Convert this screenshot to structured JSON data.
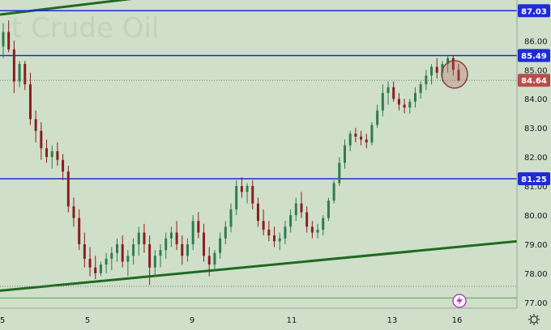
{
  "chart_data": {
    "type": "candlestick",
    "watermark": "t Crude Oil",
    "y_axis": {
      "min": 76.8,
      "max": 87.4,
      "ticks": [
        86.0,
        85.0,
        84.0,
        83.0,
        82.0,
        81.0,
        80.0,
        79.0,
        78.0,
        77.0
      ],
      "tick_labels": [
        "86.00",
        "85.00",
        "84.00",
        "83.00",
        "82.00",
        "81.00",
        "80.00",
        "79.00",
        "78.00",
        "77.00"
      ]
    },
    "x_axis": {
      "tick_labels": [
        "5",
        "5",
        "9",
        "11",
        "13",
        "16"
      ]
    },
    "horizontal_levels": [
      {
        "label": "87.03",
        "value": 87.03,
        "color": "#1e2bd6"
      },
      {
        "label": "85.49",
        "value": 85.49,
        "color": "#1e2bd6"
      },
      {
        "label": "81.25",
        "value": 81.25,
        "color": "#1e2bd6"
      }
    ],
    "last_price": {
      "label": "84.64",
      "value": 84.64,
      "color": "#b84d4d"
    },
    "trendlines": [
      {
        "color": "#1f6b1f",
        "from": {
          "x": 0,
          "y": 86.9
        },
        "to": {
          "x": 270,
          "y": 87.8
        }
      },
      {
        "color": "#1f6b1f",
        "from": {
          "x": 0,
          "y": 77.4
        },
        "to": {
          "x": 638,
          "y": 79.1
        }
      }
    ],
    "dotted_reference": [
      84.64,
      77.55
    ],
    "bottom_level": 77.15,
    "candles": [
      [
        85.8,
        86.6,
        85.4,
        86.3
      ],
      [
        86.3,
        86.7,
        85.6,
        85.7
      ],
      [
        85.7,
        86.0,
        84.2,
        84.6
      ],
      [
        84.6,
        85.3,
        84.4,
        85.2
      ],
      [
        85.2,
        85.3,
        84.3,
        84.5
      ],
      [
        84.5,
        84.9,
        83.1,
        83.3
      ],
      [
        83.3,
        83.6,
        82.5,
        82.9
      ],
      [
        82.9,
        83.2,
        81.9,
        82.3
      ],
      [
        82.3,
        82.6,
        81.8,
        82.0
      ],
      [
        82.0,
        82.4,
        81.6,
        82.2
      ],
      [
        82.2,
        82.5,
        81.7,
        81.9
      ],
      [
        81.9,
        82.1,
        81.2,
        81.5
      ],
      [
        81.5,
        81.7,
        80.1,
        80.3
      ],
      [
        80.3,
        80.6,
        79.6,
        79.9
      ],
      [
        79.9,
        80.2,
        78.8,
        79.0
      ],
      [
        79.0,
        79.4,
        78.2,
        78.5
      ],
      [
        78.5,
        78.9,
        77.9,
        78.2
      ],
      [
        78.2,
        78.6,
        77.8,
        78.0
      ],
      [
        78.0,
        78.4,
        77.9,
        78.3
      ],
      [
        78.3,
        78.7,
        78.0,
        78.5
      ],
      [
        78.5,
        78.9,
        78.1,
        78.7
      ],
      [
        78.7,
        79.2,
        78.4,
        79.0
      ],
      [
        79.0,
        79.3,
        78.2,
        78.4
      ],
      [
        78.4,
        78.8,
        77.9,
        78.6
      ],
      [
        78.6,
        79.2,
        78.3,
        79.0
      ],
      [
        79.0,
        79.6,
        78.6,
        79.4
      ],
      [
        79.4,
        79.7,
        78.7,
        79.0
      ],
      [
        79.0,
        79.3,
        77.6,
        78.2
      ],
      [
        78.2,
        78.8,
        77.9,
        78.6
      ],
      [
        78.6,
        79.0,
        78.2,
        78.8
      ],
      [
        78.8,
        79.4,
        78.5,
        79.2
      ],
      [
        79.2,
        79.6,
        78.9,
        79.4
      ],
      [
        79.4,
        79.8,
        78.8,
        79.0
      ],
      [
        79.0,
        79.3,
        78.3,
        78.6
      ],
      [
        78.6,
        79.2,
        78.4,
        79.0
      ],
      [
        79.0,
        80.0,
        78.8,
        79.8
      ],
      [
        79.8,
        80.1,
        79.2,
        79.4
      ],
      [
        79.4,
        79.7,
        78.4,
        78.6
      ],
      [
        78.6,
        78.9,
        77.9,
        78.3
      ],
      [
        78.3,
        78.8,
        78.1,
        78.7
      ],
      [
        78.7,
        79.4,
        78.5,
        79.2
      ],
      [
        79.2,
        79.8,
        79.0,
        79.6
      ],
      [
        79.6,
        80.4,
        79.4,
        80.2
      ],
      [
        80.2,
        81.2,
        80.0,
        81.0
      ],
      [
        81.0,
        81.3,
        80.6,
        80.8
      ],
      [
        80.8,
        81.1,
        80.4,
        81.0
      ],
      [
        81.0,
        81.2,
        80.2,
        80.4
      ],
      [
        80.4,
        80.6,
        79.6,
        79.8
      ],
      [
        79.8,
        80.2,
        79.3,
        79.5
      ],
      [
        79.5,
        79.8,
        79.1,
        79.3
      ],
      [
        79.3,
        79.6,
        78.9,
        79.1
      ],
      [
        79.1,
        79.4,
        78.8,
        79.2
      ],
      [
        79.2,
        79.8,
        79.0,
        79.6
      ],
      [
        79.6,
        80.2,
        79.4,
        80.0
      ],
      [
        80.0,
        80.6,
        79.8,
        80.4
      ],
      [
        80.4,
        80.8,
        79.9,
        80.1
      ],
      [
        80.1,
        80.3,
        79.4,
        79.6
      ],
      [
        79.6,
        79.8,
        79.2,
        79.4
      ],
      [
        79.4,
        79.7,
        79.2,
        79.5
      ],
      [
        79.5,
        80.0,
        79.3,
        79.9
      ],
      [
        79.9,
        80.6,
        79.8,
        80.5
      ],
      [
        80.5,
        81.2,
        80.4,
        81.1
      ],
      [
        81.1,
        82.0,
        81.0,
        81.8
      ],
      [
        81.8,
        82.6,
        81.6,
        82.4
      ],
      [
        82.4,
        82.9,
        82.2,
        82.8
      ],
      [
        82.8,
        83.0,
        82.5,
        82.7
      ],
      [
        82.7,
        82.9,
        82.4,
        82.6
      ],
      [
        82.6,
        82.8,
        82.3,
        82.5
      ],
      [
        82.5,
        83.2,
        82.4,
        83.1
      ],
      [
        83.1,
        83.8,
        83.0,
        83.6
      ],
      [
        83.6,
        84.5,
        83.4,
        84.2
      ],
      [
        84.2,
        84.6,
        83.8,
        84.4
      ],
      [
        84.4,
        84.6,
        83.9,
        84.0
      ],
      [
        84.0,
        84.2,
        83.6,
        83.8
      ],
      [
        83.8,
        84.0,
        83.5,
        83.7
      ],
      [
        83.7,
        84.0,
        83.5,
        83.9
      ],
      [
        83.9,
        84.4,
        83.7,
        84.2
      ],
      [
        84.2,
        84.6,
        84.0,
        84.5
      ],
      [
        84.5,
        85.0,
        84.3,
        84.8
      ],
      [
        84.8,
        85.2,
        84.5,
        85.1
      ],
      [
        85.1,
        85.4,
        84.7,
        84.9
      ],
      [
        84.9,
        85.3,
        84.6,
        85.2
      ],
      [
        85.2,
        85.5,
        84.9,
        85.4
      ],
      [
        85.4,
        85.5,
        84.8,
        85.0
      ],
      [
        85.0,
        85.2,
        84.6,
        84.64
      ]
    ]
  }
}
